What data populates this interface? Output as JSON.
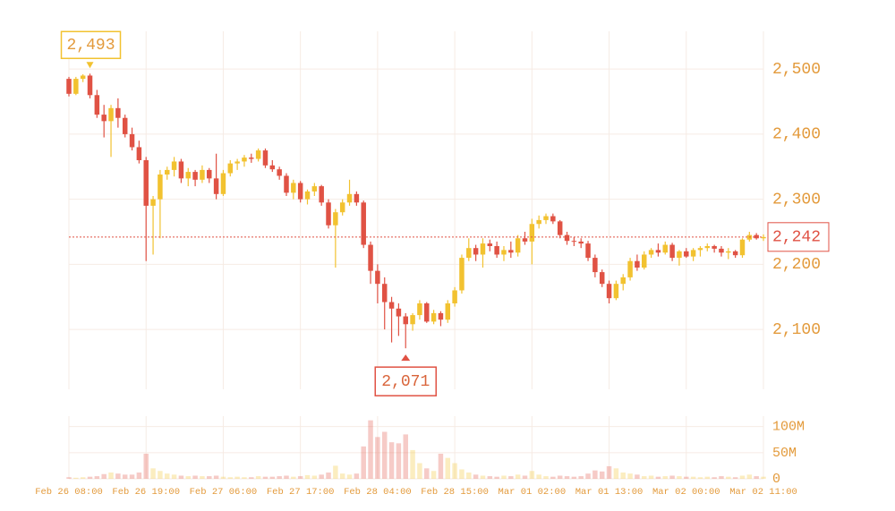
{
  "chart_data": {
    "type": "candlestick",
    "up_color": "#f2c230",
    "down_color": "#e05244",
    "categories": [
      "Feb 26 08:00",
      null,
      null,
      null,
      null,
      null,
      null,
      null,
      null,
      null,
      null,
      "Feb 26 19:00",
      null,
      null,
      null,
      null,
      null,
      null,
      null,
      null,
      null,
      null,
      "Feb 27 06:00",
      null,
      null,
      null,
      null,
      null,
      null,
      null,
      null,
      null,
      null,
      "Feb 27 17:00",
      null,
      null,
      null,
      null,
      null,
      null,
      null,
      null,
      null,
      null,
      "Feb 28 04:00",
      null,
      null,
      null,
      null,
      null,
      null,
      null,
      null,
      null,
      null,
      "Feb 28 15:00",
      null,
      null,
      null,
      null,
      null,
      null,
      null,
      null,
      null,
      null,
      "Mar 01 02:00",
      null,
      null,
      null,
      null,
      null,
      null,
      null,
      null,
      null,
      null,
      "Mar 01 13:00",
      null,
      null,
      null,
      null,
      null,
      null,
      null,
      null,
      null,
      null,
      "Mar 02 00:00",
      null,
      null,
      null,
      null,
      null,
      null,
      null,
      null,
      null,
      null,
      "Mar 02 11:00"
    ],
    "open": [
      2485,
      2462,
      2485,
      2490,
      2460,
      2430,
      2420,
      2440,
      2425,
      2400,
      2380,
      2360,
      2290,
      2300,
      2338,
      2345,
      2358,
      2332,
      2342,
      2330,
      2345,
      2332,
      2308,
      2340,
      2355,
      2358,
      2364,
      2362,
      2375,
      2352,
      2346,
      2336,
      2310,
      2325,
      2300,
      2312,
      2320,
      2295,
      2260,
      2280,
      2295,
      2308,
      2295,
      2230,
      2190,
      2170,
      2142,
      2132,
      2120,
      2108,
      2122,
      2140,
      2112,
      2125,
      2115,
      2140,
      2160,
      2210,
      2225,
      2215,
      2232,
      2228,
      2215,
      2222,
      2218,
      2240,
      2235,
      2262,
      2268,
      2274,
      2266,
      2245,
      2236,
      2235,
      2232,
      2210,
      2188,
      2170,
      2148,
      2170,
      2180,
      2205,
      2195,
      2215,
      2222,
      2218,
      2230,
      2210,
      2220,
      2212,
      2222,
      2225,
      2228,
      2224,
      2218,
      2220,
      2214,
      2238,
      2245,
      2240
    ],
    "high": [
      2488,
      2488,
      2492,
      2493,
      2468,
      2445,
      2445,
      2455,
      2430,
      2410,
      2390,
      2365,
      2305,
      2345,
      2350,
      2365,
      2362,
      2348,
      2345,
      2352,
      2348,
      2370,
      2345,
      2360,
      2362,
      2368,
      2370,
      2378,
      2378,
      2360,
      2350,
      2340,
      2330,
      2328,
      2315,
      2325,
      2322,
      2300,
      2285,
      2300,
      2330,
      2312,
      2298,
      2235,
      2200,
      2180,
      2150,
      2140,
      2125,
      2125,
      2145,
      2142,
      2130,
      2128,
      2145,
      2165,
      2215,
      2240,
      2230,
      2240,
      2238,
      2235,
      2228,
      2235,
      2245,
      2250,
      2270,
      2275,
      2278,
      2278,
      2268,
      2250,
      2242,
      2240,
      2236,
      2215,
      2192,
      2175,
      2175,
      2185,
      2210,
      2215,
      2220,
      2225,
      2232,
      2235,
      2233,
      2222,
      2225,
      2225,
      2228,
      2232,
      2230,
      2228,
      2225,
      2222,
      2240,
      2250,
      2248,
      2246
    ],
    "low": [
      2458,
      2460,
      2480,
      2455,
      2425,
      2395,
      2365,
      2410,
      2395,
      2375,
      2355,
      2205,
      2215,
      2240,
      2330,
      2335,
      2325,
      2320,
      2320,
      2325,
      2325,
      2300,
      2305,
      2335,
      2345,
      2350,
      2356,
      2358,
      2348,
      2342,
      2330,
      2305,
      2300,
      2295,
      2292,
      2305,
      2290,
      2255,
      2195,
      2275,
      2290,
      2290,
      2225,
      2170,
      2140,
      2100,
      2080,
      2090,
      2071,
      2098,
      2115,
      2110,
      2108,
      2105,
      2110,
      2135,
      2155,
      2205,
      2205,
      2195,
      2220,
      2210,
      2205,
      2210,
      2212,
      2230,
      2200,
      2255,
      2262,
      2262,
      2240,
      2230,
      2228,
      2225,
      2205,
      2180,
      2165,
      2140,
      2145,
      2160,
      2175,
      2190,
      2192,
      2210,
      2212,
      2215,
      2205,
      2198,
      2210,
      2205,
      2212,
      2220,
      2218,
      2212,
      2208,
      2210,
      2210,
      2235,
      2238,
      2236
    ],
    "close": [
      2462,
      2485,
      2490,
      2460,
      2430,
      2420,
      2440,
      2425,
      2400,
      2380,
      2360,
      2290,
      2300,
      2338,
      2345,
      2358,
      2332,
      2342,
      2330,
      2345,
      2332,
      2308,
      2340,
      2355,
      2358,
      2364,
      2362,
      2375,
      2352,
      2346,
      2336,
      2310,
      2325,
      2300,
      2312,
      2320,
      2295,
      2260,
      2280,
      2295,
      2308,
      2295,
      2230,
      2190,
      2170,
      2142,
      2132,
      2120,
      2108,
      2122,
      2140,
      2112,
      2125,
      2115,
      2140,
      2160,
      2210,
      2225,
      2215,
      2232,
      2228,
      2215,
      2222,
      2218,
      2240,
      2235,
      2262,
      2268,
      2274,
      2266,
      2245,
      2236,
      2235,
      2232,
      2210,
      2188,
      2170,
      2148,
      2170,
      2180,
      2205,
      2195,
      2215,
      2222,
      2218,
      2230,
      2210,
      2220,
      2212,
      2222,
      2225,
      2228,
      2224,
      2218,
      2220,
      2214,
      2238,
      2245,
      2240,
      2242
    ],
    "volume": [
      3,
      2,
      3,
      4,
      5,
      9,
      12,
      10,
      8,
      8,
      12,
      48,
      20,
      15,
      10,
      8,
      6,
      5,
      6,
      5,
      5,
      6,
      4,
      3,
      4,
      3,
      3,
      5,
      4,
      4,
      5,
      6,
      4,
      5,
      7,
      6,
      8,
      12,
      25,
      10,
      8,
      10,
      62,
      112,
      80,
      90,
      70,
      68,
      85,
      55,
      30,
      20,
      15,
      48,
      40,
      30,
      18,
      12,
      8,
      6,
      5,
      4,
      6,
      5,
      8,
      6,
      15,
      8,
      5,
      4,
      6,
      5,
      4,
      5,
      10,
      16,
      14,
      24,
      20,
      12,
      10,
      8,
      5,
      6,
      4,
      5,
      6,
      5,
      4,
      4,
      3,
      4,
      3,
      5,
      4,
      3,
      6,
      8,
      5,
      4
    ],
    "ylim": [
      2008,
      2558
    ],
    "yticks": [
      {
        "value": 2100,
        "label": "2,100"
      },
      {
        "value": 2200,
        "label": "2,200"
      },
      {
        "value": 2300,
        "label": "2,300"
      },
      {
        "value": 2400,
        "label": "2,400"
      },
      {
        "value": 2500,
        "label": "2,500"
      }
    ],
    "volume_ylim": [
      0,
      120
    ],
    "volume_yticks": [
      0,
      {
        "value": 50,
        "label": "50M"
      },
      {
        "value": 100,
        "label": "100M"
      }
    ],
    "grid": true,
    "annotations": {
      "max_label": "2,493",
      "min_label": "2,071",
      "last_label": "2,242"
    }
  }
}
